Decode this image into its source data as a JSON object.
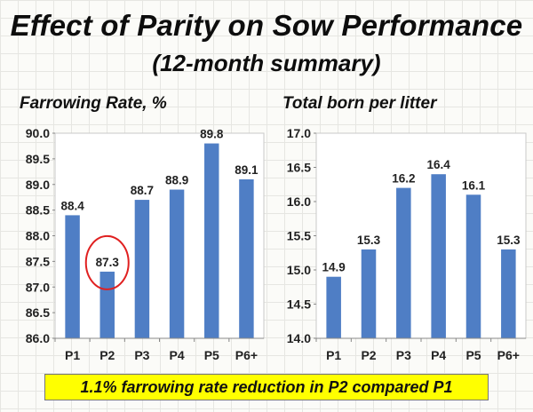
{
  "slide": {
    "title": "Effect of Parity on Sow Performance",
    "subtitle": "(12-month summary)",
    "note": "1.1% farrowing rate reduction in P2 compared P1"
  },
  "chart_data": [
    {
      "type": "bar",
      "title": "Farrowing Rate, %",
      "categories": [
        "P1",
        "P2",
        "P3",
        "P4",
        "P5",
        "P6+"
      ],
      "values": [
        88.4,
        87.3,
        88.7,
        88.9,
        89.8,
        89.1
      ],
      "value_labels": [
        "88.4",
        "87.3",
        "88.7",
        "88.9",
        "89.8",
        "89.1"
      ],
      "ylim": [
        86.0,
        90.0
      ],
      "yticks": [
        "86.0",
        "86.5",
        "87.0",
        "87.5",
        "88.0",
        "88.5",
        "89.0",
        "89.5",
        "90.0"
      ],
      "bar_color": "#4f7ec5",
      "highlight": {
        "category": "P2",
        "shape": "circle",
        "color": "#e02020"
      },
      "grid": false,
      "legend": "none"
    },
    {
      "type": "bar",
      "title": "Total born per litter",
      "categories": [
        "P1",
        "P2",
        "P3",
        "P4",
        "P5",
        "P6+"
      ],
      "values": [
        14.9,
        15.3,
        16.2,
        16.4,
        16.1,
        15.3
      ],
      "value_labels": [
        "14.9",
        "15.3",
        "16.2",
        "16.4",
        "16.1",
        "15.3"
      ],
      "ylim": [
        14.0,
        17.0
      ],
      "yticks": [
        "14.0",
        "14.5",
        "15.0",
        "15.5",
        "16.0",
        "16.5",
        "17.0"
      ],
      "bar_color": "#4f7ec5",
      "grid": false,
      "legend": "none"
    }
  ]
}
